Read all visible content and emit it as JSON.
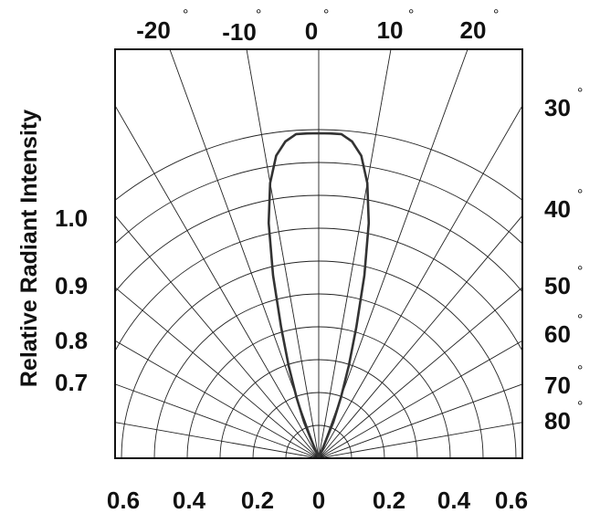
{
  "chart_data": {
    "type": "polar-radiation-pattern",
    "ylabel": "Relative Radiant Intensity",
    "degree_symbol": "°",
    "top_angle_labels": [
      "-20",
      "-10",
      "0",
      "10",
      "20"
    ],
    "right_angle_labels": [
      "30",
      "40",
      "50",
      "60",
      "70",
      "80"
    ],
    "left_intensity_labels": [
      "1.0",
      "0.9",
      "0.8",
      "0.7"
    ],
    "bottom_labels": [
      "0.6",
      "0.4",
      "0.2",
      "0",
      "0.2",
      "0.4",
      "0.6"
    ],
    "angle_grid_deg": [
      -90,
      -80,
      -70,
      -60,
      -50,
      -40,
      -30,
      -20,
      -10,
      0,
      10,
      20,
      30,
      40,
      50,
      60,
      70,
      80,
      90
    ],
    "radius_grid": [
      0.1,
      0.2,
      0.3,
      0.4,
      0.5,
      0.6,
      0.7,
      0.8,
      0.9,
      1.0
    ],
    "series": [
      {
        "angle_deg": [
          -25,
          -22,
          -20,
          -18,
          -16,
          -14,
          -12,
          -10,
          -8,
          -6,
          -4,
          -2,
          0,
          2,
          4,
          6,
          8,
          10,
          12,
          14,
          16,
          18,
          20,
          22,
          25
        ],
        "relative_intensity": [
          0.0,
          0.12,
          0.2,
          0.3,
          0.42,
          0.58,
          0.74,
          0.86,
          0.94,
          0.98,
          1.0,
          1.0,
          1.0,
          1.0,
          1.0,
          0.98,
          0.94,
          0.86,
          0.74,
          0.58,
          0.42,
          0.3,
          0.2,
          0.12,
          0.0
        ]
      }
    ],
    "colors": {
      "curve": "#333333",
      "grid": "#222222",
      "frame": "#111111"
    }
  }
}
